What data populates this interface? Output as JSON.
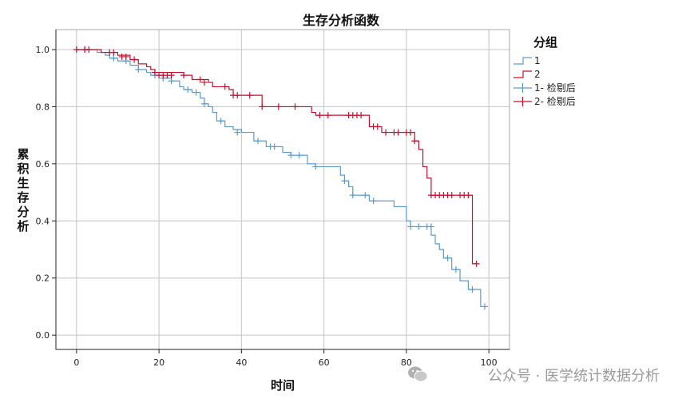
{
  "chart_data": {
    "type": "line",
    "title": "生存分析函数",
    "xlabel": "时间",
    "ylabel": "累积生存分析",
    "xlim": [
      -5,
      105
    ],
    "ylim": [
      -0.05,
      1.07
    ],
    "x_ticks": [
      0,
      20,
      40,
      60,
      80,
      100
    ],
    "y_ticks": [
      0.0,
      0.2,
      0.4,
      0.6,
      0.8,
      1.0
    ],
    "y_tick_labels": [
      "0.0",
      "0.2",
      "0.4",
      "0.6",
      "0.8",
      "1.0"
    ],
    "grid": true,
    "legend": {
      "title": "分组",
      "placement": "right",
      "entries": [
        "1",
        "2",
        "1- 检剔后",
        "2- 检剔后"
      ]
    },
    "series": [
      {
        "name": "1",
        "color": "#5b9bd5",
        "step": [
          [
            0,
            1.0
          ],
          [
            5,
            0.99
          ],
          [
            7,
            0.98
          ],
          [
            8,
            0.97
          ],
          [
            10,
            0.96
          ],
          [
            13,
            0.945
          ],
          [
            15,
            0.93
          ],
          [
            17,
            0.92
          ],
          [
            18,
            0.91
          ],
          [
            21,
            0.9
          ],
          [
            23,
            0.89
          ],
          [
            25,
            0.87
          ],
          [
            26,
            0.86
          ],
          [
            28,
            0.85
          ],
          [
            30,
            0.83
          ],
          [
            31,
            0.81
          ],
          [
            32,
            0.8
          ],
          [
            33,
            0.78
          ],
          [
            34,
            0.75
          ],
          [
            36,
            0.73
          ],
          [
            38,
            0.72
          ],
          [
            40,
            0.71
          ],
          [
            43,
            0.68
          ],
          [
            46,
            0.66
          ],
          [
            50,
            0.64
          ],
          [
            52,
            0.63
          ],
          [
            56,
            0.6
          ],
          [
            58,
            0.59
          ],
          [
            64,
            0.56
          ],
          [
            65,
            0.54
          ],
          [
            66,
            0.52
          ],
          [
            67,
            0.49
          ],
          [
            71,
            0.47
          ],
          [
            77,
            0.45
          ],
          [
            80,
            0.4
          ],
          [
            81,
            0.38
          ],
          [
            86,
            0.35
          ],
          [
            87,
            0.32
          ],
          [
            88,
            0.3
          ],
          [
            89,
            0.27
          ],
          [
            91,
            0.23
          ],
          [
            93,
            0.19
          ],
          [
            95,
            0.16
          ],
          [
            98,
            0.1
          ],
          [
            99,
            0.1
          ]
        ],
        "censored": [
          [
            2,
            1.0
          ],
          [
            9,
            0.97
          ],
          [
            12,
            0.96
          ],
          [
            15,
            0.93
          ],
          [
            19,
            0.91
          ],
          [
            21,
            0.9
          ],
          [
            23,
            0.89
          ],
          [
            27,
            0.86
          ],
          [
            29,
            0.85
          ],
          [
            31,
            0.81
          ],
          [
            35,
            0.75
          ],
          [
            39,
            0.71
          ],
          [
            44,
            0.68
          ],
          [
            47,
            0.66
          ],
          [
            48,
            0.66
          ],
          [
            52,
            0.63
          ],
          [
            54,
            0.63
          ],
          [
            58,
            0.59
          ],
          [
            65,
            0.54
          ],
          [
            67,
            0.49
          ],
          [
            70,
            0.49
          ],
          [
            72,
            0.47
          ],
          [
            81,
            0.38
          ],
          [
            83,
            0.38
          ],
          [
            85,
            0.38
          ],
          [
            86,
            0.38
          ],
          [
            90,
            0.27
          ],
          [
            92,
            0.23
          ],
          [
            96,
            0.16
          ],
          [
            99,
            0.1
          ]
        ]
      },
      {
        "name": "2",
        "color": "#c8102e",
        "step": [
          [
            0,
            1.0
          ],
          [
            6,
            0.99
          ],
          [
            10,
            0.98
          ],
          [
            13,
            0.965
          ],
          [
            15,
            0.95
          ],
          [
            17,
            0.94
          ],
          [
            18,
            0.93
          ],
          [
            19,
            0.92
          ],
          [
            26,
            0.91
          ],
          [
            28,
            0.895
          ],
          [
            32,
            0.885
          ],
          [
            33,
            0.87
          ],
          [
            37,
            0.86
          ],
          [
            38,
            0.84
          ],
          [
            45,
            0.8
          ],
          [
            57,
            0.78
          ],
          [
            58,
            0.77
          ],
          [
            71,
            0.73
          ],
          [
            74,
            0.71
          ],
          [
            82,
            0.68
          ],
          [
            83,
            0.65
          ],
          [
            84,
            0.59
          ],
          [
            85,
            0.55
          ],
          [
            86,
            0.49
          ],
          [
            96,
            0.25
          ],
          [
            97,
            0.25
          ]
        ],
        "censored": [
          [
            0,
            1.0
          ],
          [
            2,
            1.0
          ],
          [
            3,
            1.0
          ],
          [
            8,
            0.99
          ],
          [
            9,
            0.99
          ],
          [
            11,
            0.975
          ],
          [
            12,
            0.975
          ],
          [
            14,
            0.965
          ],
          [
            19,
            0.92
          ],
          [
            20,
            0.91
          ],
          [
            21,
            0.91
          ],
          [
            22,
            0.91
          ],
          [
            23,
            0.91
          ],
          [
            26,
            0.91
          ],
          [
            30,
            0.895
          ],
          [
            31,
            0.885
          ],
          [
            36,
            0.87
          ],
          [
            38,
            0.84
          ],
          [
            39,
            0.84
          ],
          [
            42,
            0.84
          ],
          [
            45,
            0.8
          ],
          [
            49,
            0.8
          ],
          [
            53,
            0.8
          ],
          [
            59,
            0.77
          ],
          [
            61,
            0.77
          ],
          [
            66,
            0.77
          ],
          [
            67,
            0.77
          ],
          [
            68,
            0.77
          ],
          [
            69,
            0.77
          ],
          [
            72,
            0.73
          ],
          [
            73,
            0.73
          ],
          [
            75,
            0.71
          ],
          [
            77,
            0.71
          ],
          [
            78,
            0.71
          ],
          [
            80,
            0.71
          ],
          [
            81,
            0.71
          ],
          [
            82,
            0.68
          ],
          [
            86,
            0.49
          ],
          [
            87,
            0.49
          ],
          [
            88,
            0.49
          ],
          [
            89,
            0.49
          ],
          [
            90,
            0.49
          ],
          [
            91,
            0.49
          ],
          [
            93,
            0.49
          ],
          [
            94,
            0.49
          ],
          [
            95,
            0.49
          ],
          [
            97,
            0.25
          ]
        ]
      }
    ]
  },
  "watermark": {
    "text": "公众号 · 医学统计数据分析"
  }
}
